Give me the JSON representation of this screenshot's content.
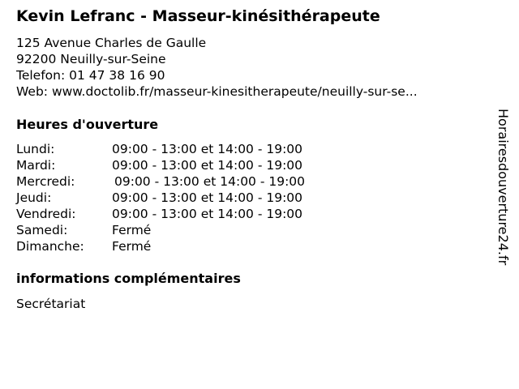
{
  "title": "Kevin Lefranc - Masseur-kinésithérapeute",
  "address": {
    "street": "125 Avenue Charles de Gaulle",
    "city": "92200 Neuilly-sur-Seine",
    "phone": "Telefon: 01 47 38 16 90",
    "web": "Web: www.doctolib.fr/masseur-kinesitherapeute/neuilly-sur-se..."
  },
  "hours": {
    "heading": "Heures d'ouverture",
    "rows": [
      {
        "day": "Lundi:",
        "time": "09:00 - 13:00 et 14:00 - 19:00"
      },
      {
        "day": "Mardi:",
        "time": "09:00 - 13:00 et 14:00 - 19:00"
      },
      {
        "day": "Mercredi:",
        "time": "09:00 - 13:00 et 14:00 - 19:00"
      },
      {
        "day": "Jeudi:",
        "time": "09:00 - 13:00 et 14:00 - 19:00"
      },
      {
        "day": "Vendredi:",
        "time": "09:00 - 13:00 et 14:00 - 19:00"
      },
      {
        "day": "Samedi:",
        "time": "Fermé"
      },
      {
        "day": "Dimanche:",
        "time": "Fermé"
      }
    ]
  },
  "info": {
    "heading": "informations complémentaires",
    "text": "Secrétariat"
  },
  "watermark": "Horairesdouverture24.fr"
}
